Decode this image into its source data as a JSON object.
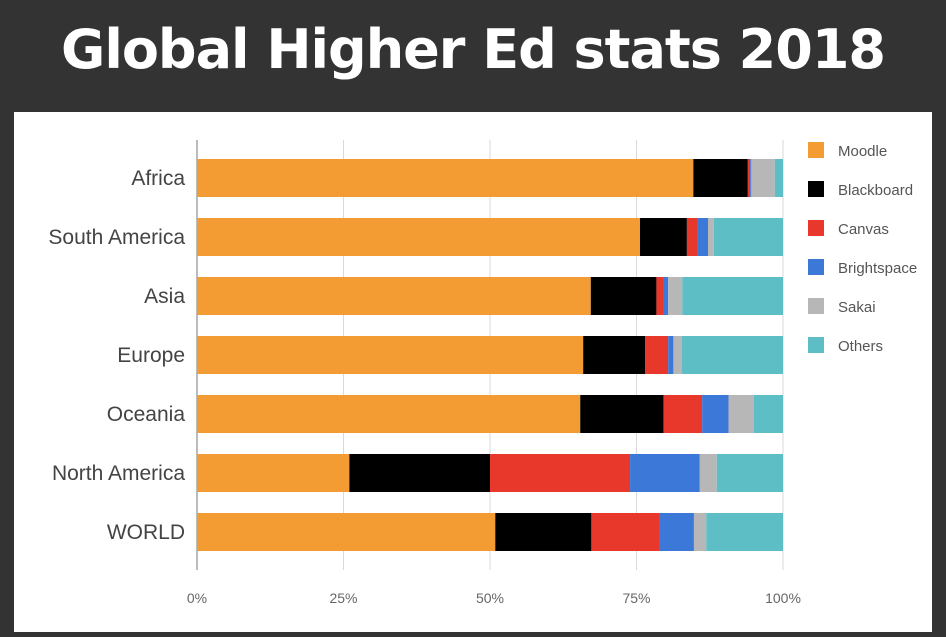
{
  "header": {
    "title": "Global Higher Ed stats 2018"
  },
  "chart_data": {
    "type": "bar",
    "orientation": "horizontal",
    "stacked": "percent",
    "title": "Global Higher Ed stats 2018",
    "xlabel": "",
    "ylabel": "",
    "xlim": [
      0,
      100
    ],
    "x_ticks": [
      "0%",
      "25%",
      "50%",
      "75%",
      "100%"
    ],
    "grid": true,
    "legend_position": "right",
    "categories": [
      "Africa",
      "South America",
      "Asia",
      "Europe",
      "Oceania",
      "North America",
      "WORLD"
    ],
    "series": [
      {
        "name": "Moodle",
        "color": "#F39C34",
        "values": [
          84.7,
          75.6,
          67.2,
          65.9,
          65.4,
          26.0,
          50.9
        ]
      },
      {
        "name": "Blackboard",
        "color": "#000000",
        "values": [
          9.3,
          8.0,
          11.2,
          10.6,
          14.2,
          24.0,
          16.4
        ]
      },
      {
        "name": "Canvas",
        "color": "#E8382B",
        "values": [
          0.4,
          1.8,
          1.2,
          3.9,
          6.6,
          23.9,
          11.7
        ]
      },
      {
        "name": "Brightspace",
        "color": "#3C78D8",
        "values": [
          0.2,
          1.8,
          0.8,
          0.9,
          4.5,
          11.9,
          5.8
        ]
      },
      {
        "name": "Sakai",
        "color": "#B7B7B7",
        "values": [
          4.0,
          1.0,
          2.4,
          1.4,
          4.3,
          2.9,
          2.1
        ]
      },
      {
        "name": "Others",
        "color": "#5EBEC6",
        "values": [
          1.4,
          11.8,
          17.2,
          17.3,
          5.0,
          11.3,
          13.1
        ]
      }
    ]
  }
}
